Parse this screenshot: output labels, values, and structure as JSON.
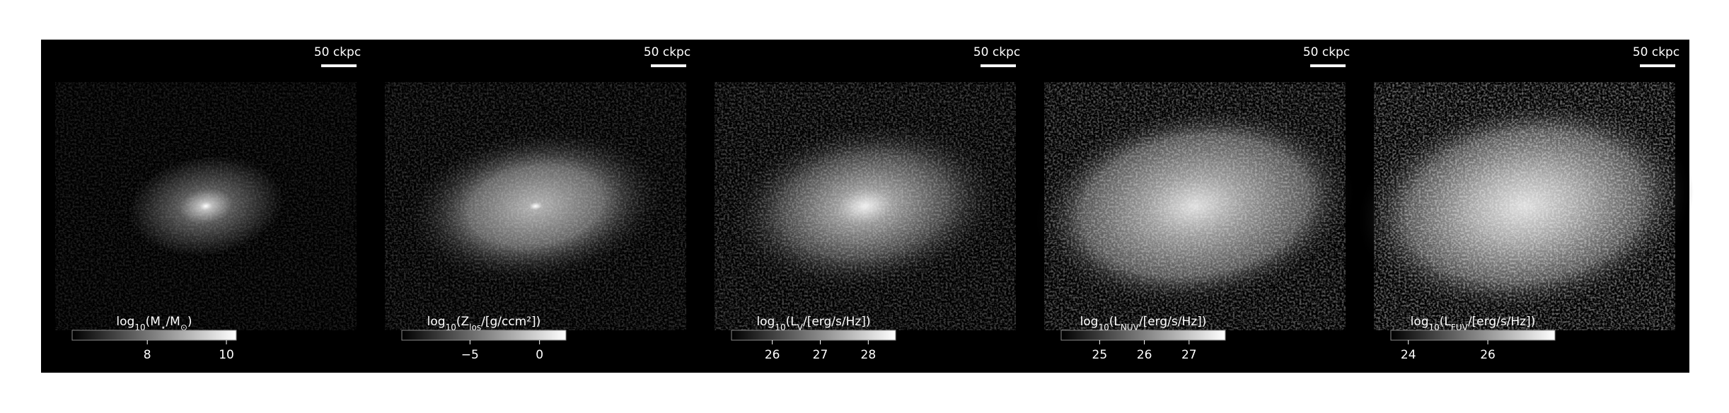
{
  "panels": [
    {
      "scale_bar": "50 ckpc",
      "colorbar": {
        "label": [
          {
            "t": "log"
          },
          {
            "t": "10",
            "sub": true
          },
          {
            "t": "(M"
          },
          {
            "t": "⋆",
            "sub": true
          },
          {
            "t": "/M"
          },
          {
            "t": "⊙",
            "sub": true
          },
          {
            "t": ")"
          }
        ],
        "lim": [
          6.1,
          10.25
        ],
        "ticks": [
          8,
          10
        ]
      }
    },
    {
      "scale_bar": "50 ckpc",
      "colorbar": {
        "label": [
          {
            "t": "log"
          },
          {
            "t": "10",
            "sub": true
          },
          {
            "t": "(Z"
          },
          {
            "t": "los",
            "sub": true
          },
          {
            "t": "/[g/ccm²])"
          }
        ],
        "lim": [
          -9.9,
          1.9
        ],
        "ticks": [
          {
            "value": -5,
            "label": "−5"
          },
          0
        ]
      }
    },
    {
      "scale_bar": "50 ckpc",
      "colorbar": {
        "label": [
          {
            "t": "log"
          },
          {
            "t": "10",
            "sub": true
          },
          {
            "t": "(L"
          },
          {
            "t": "V",
            "sub": true
          },
          {
            "t": "/[erg/s/Hz])"
          }
        ],
        "lim": [
          25.15,
          28.57
        ],
        "ticks": [
          26,
          27,
          28
        ]
      }
    },
    {
      "scale_bar": "50 ckpc",
      "colorbar": {
        "label": [
          {
            "t": "log"
          },
          {
            "t": "10",
            "sub": true
          },
          {
            "t": "(L"
          },
          {
            "t": "NUV",
            "sub": true
          },
          {
            "t": "/[erg/s/Hz])"
          }
        ],
        "lim": [
          24.14,
          27.81
        ],
        "ticks": [
          25,
          26,
          27
        ]
      }
    },
    {
      "scale_bar": "50 ckpc",
      "colorbar": {
        "label": [
          {
            "t": "log"
          },
          {
            "t": "10",
            "sub": true
          },
          {
            "t": "(L"
          },
          {
            "t": "FUV",
            "sub": true
          },
          {
            "t": "/[erg/s/Hz])"
          }
        ],
        "lim": [
          23.56,
          27.69
        ],
        "ticks": [
          24,
          26
        ]
      }
    }
  ]
}
